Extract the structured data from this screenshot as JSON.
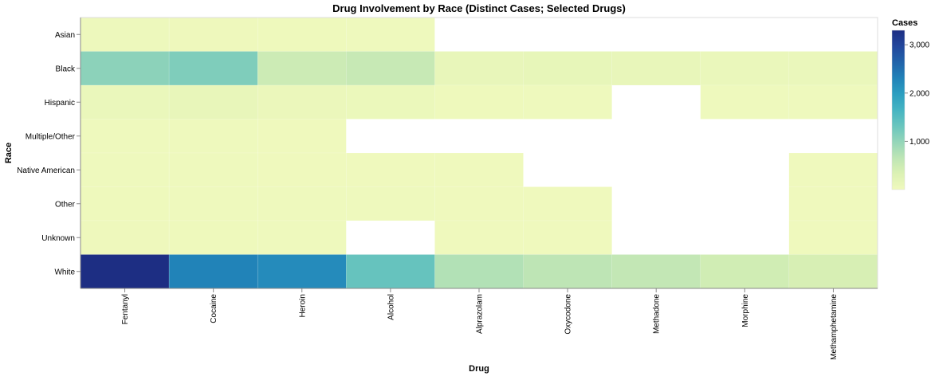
{
  "chart_data": {
    "type": "heatmap",
    "title": "Drug Involvement by Race (Distinct Cases; Selected Drugs)",
    "xlabel": "Drug",
    "ylabel": "Race",
    "x_categories": [
      "Fentanyl",
      "Cocaine",
      "Heroin",
      "Alcohol",
      "Alprazolam",
      "Oxycodone",
      "Methadone",
      "Morphine",
      "Methamphetamine"
    ],
    "y_categories": [
      "Asian",
      "Black",
      "Hispanic",
      "Multiple/Other",
      "Native American",
      "Other",
      "Unknown",
      "White"
    ],
    "values": [
      [
        30,
        25,
        20,
        15,
        null,
        null,
        null,
        null,
        null
      ],
      [
        1050,
        1150,
        500,
        550,
        120,
        130,
        110,
        90,
        80
      ],
      [
        90,
        110,
        70,
        60,
        20,
        15,
        null,
        10,
        12
      ],
      [
        15,
        12,
        8,
        null,
        null,
        null,
        null,
        null,
        null
      ],
      [
        12,
        10,
        8,
        5,
        3,
        null,
        null,
        null,
        3
      ],
      [
        20,
        18,
        15,
        10,
        6,
        5,
        null,
        null,
        4
      ],
      [
        25,
        20,
        18,
        null,
        6,
        5,
        null,
        null,
        4
      ],
      [
        3300,
        2300,
        2200,
        1350,
        750,
        650,
        600,
        450,
        380
      ]
    ],
    "legend": {
      "title": "Cases",
      "ticks": [
        1000,
        2000,
        3000
      ],
      "tick_labels": [
        "1,000",
        "2,000",
        "3,000"
      ],
      "domain": [
        1,
        3300
      ],
      "position": "right",
      "color_stops": [
        "#eff9bd",
        "#dbf1b4",
        "#bde5b5",
        "#94d5b9",
        "#69c5be",
        "#45b4c2",
        "#2c9ec0",
        "#2182b8",
        "#2163aa",
        "#23479c",
        "#1d2e83"
      ]
    },
    "grid": false
  }
}
